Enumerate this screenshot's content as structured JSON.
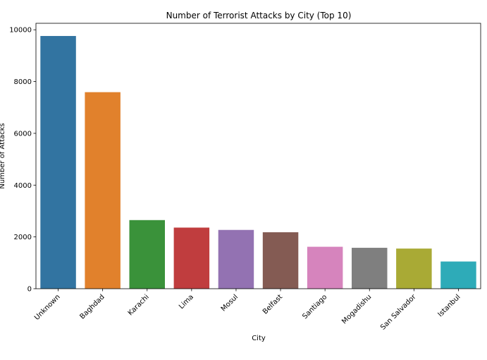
{
  "chart_data": {
    "type": "bar",
    "title": "Number of Terrorist Attacks by City (Top 10)",
    "xlabel": "City",
    "ylabel": "Number of Attacks",
    "ylim": [
      0,
      10250
    ],
    "yticks": [
      0,
      2000,
      4000,
      6000,
      8000,
      10000
    ],
    "grid": false,
    "categories": [
      "Unknown",
      "Baghdad",
      "Karachi",
      "Lima",
      "Mosul",
      "Belfast",
      "Santiago",
      "Mogadishu",
      "San Salvador",
      "Istanbul"
    ],
    "values": [
      9760,
      7590,
      2650,
      2360,
      2270,
      2180,
      1620,
      1580,
      1550,
      1050
    ],
    "colors": [
      "#3274a1",
      "#e1812c",
      "#3a923a",
      "#c03d3e",
      "#9372b2",
      "#845b53",
      "#d684bd",
      "#7f7f7f",
      "#a9aa35",
      "#2eabb8"
    ]
  }
}
